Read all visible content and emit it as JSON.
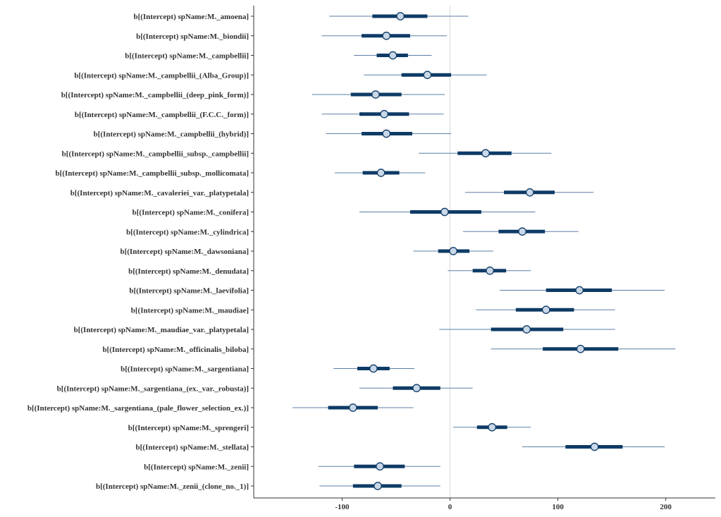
{
  "chart_data": {
    "type": "interval",
    "title": "",
    "xlabel": "",
    "ylabel": "",
    "xlim": [
      -182,
      246
    ],
    "xticks": [
      -100,
      0,
      100,
      200
    ],
    "xtick_labels": [
      "-100",
      "0",
      "100",
      "200"
    ],
    "reference_line": 0,
    "grid": false,
    "legend": "none",
    "colors": {
      "thin": "#5b7fa3",
      "thick": "#0e3b66",
      "point_fill": "#c9d8e8",
      "point_stroke": "#0e3b66",
      "axis": "#333333",
      "reference_line": "#d9d9d9"
    },
    "rows": [
      {
        "label": "b[(Intercept) spName:M._amoena]",
        "median": -46,
        "inner": [
          -72,
          -21
        ],
        "outer": [
          -112,
          17
        ]
      },
      {
        "label": "b[(Intercept) spName:M._biondii]",
        "median": -59,
        "inner": [
          -82,
          -37
        ],
        "outer": [
          -119,
          -3
        ]
      },
      {
        "label": "b[(Intercept) spName:M._campbellii]",
        "median": -53,
        "inner": [
          -68,
          -39
        ],
        "outer": [
          -89,
          -17
        ]
      },
      {
        "label": "b[(Intercept) spName:M._campbellii_(Alba_Group)]",
        "median": -21,
        "inner": [
          -45,
          1
        ],
        "outer": [
          -80,
          34
        ]
      },
      {
        "label": "b[(Intercept) spName:M._campbellii_(deep_pink_form)]",
        "median": -69,
        "inner": [
          -92,
          -45
        ],
        "outer": [
          -128,
          -5
        ]
      },
      {
        "label": "b[(Intercept) spName:M._campbellii_(F.C.C._form)]",
        "median": -61,
        "inner": [
          -84,
          -38
        ],
        "outer": [
          -119,
          -6
        ]
      },
      {
        "label": "b[(Intercept) spName:M._campbellii_(hybrid)]",
        "median": -59,
        "inner": [
          -82,
          -35
        ],
        "outer": [
          -115,
          1
        ]
      },
      {
        "label": "b[(Intercept) spName:M._campbellii_subsp._campbellii]",
        "median": 33,
        "inner": [
          7,
          57
        ],
        "outer": [
          -29,
          94
        ]
      },
      {
        "label": "b[(Intercept) spName:M._campbellii_subsp._mollicomata]",
        "median": -64,
        "inner": [
          -81,
          -47
        ],
        "outer": [
          -107,
          -23
        ]
      },
      {
        "label": "b[(Intercept) spName:M._cavaleriei_var._platypetala]",
        "median": 74,
        "inner": [
          50,
          97
        ],
        "outer": [
          14,
          133
        ]
      },
      {
        "label": "b[(Intercept) spName:M._conifera]",
        "median": -5,
        "inner": [
          -37,
          29
        ],
        "outer": [
          -84,
          79
        ]
      },
      {
        "label": "b[(Intercept) spName:M._cylindrica]",
        "median": 67,
        "inner": [
          45,
          88
        ],
        "outer": [
          12,
          119
        ]
      },
      {
        "label": "b[(Intercept) spName:M._dawsoniana]",
        "median": 3,
        "inner": [
          -11,
          18
        ],
        "outer": [
          -34,
          40
        ]
      },
      {
        "label": "b[(Intercept) spName:M._denudata]",
        "median": 37,
        "inner": [
          21,
          52
        ],
        "outer": [
          -2,
          75
        ]
      },
      {
        "label": "b[(Intercept) spName:M._laevifolia]",
        "median": 120,
        "inner": [
          89,
          150
        ],
        "outer": [
          46,
          199
        ]
      },
      {
        "label": "b[(Intercept) spName:M._maudiae]",
        "median": 89,
        "inner": [
          61,
          115
        ],
        "outer": [
          24,
          153
        ]
      },
      {
        "label": "b[(Intercept) spName:M._maudiae_var._platypetala]",
        "median": 71,
        "inner": [
          38,
          105
        ],
        "outer": [
          -10,
          153
        ]
      },
      {
        "label": "b[(Intercept) spName:M._officinalis_biloba]",
        "median": 121,
        "inner": [
          86,
          156
        ],
        "outer": [
          38,
          209
        ]
      },
      {
        "label": "b[(Intercept) spName:M._sargentiana]",
        "median": -71,
        "inner": [
          -86,
          -56
        ],
        "outer": [
          -108,
          -33
        ]
      },
      {
        "label": "b[(Intercept) spName:M._sargentiana_(ex._var._robusta)]",
        "median": -31,
        "inner": [
          -53,
          -9
        ],
        "outer": [
          -84,
          21
        ]
      },
      {
        "label": "b[(Intercept) spName:M._sargentiana_(pale_flower_selection_ex.)]",
        "median": -90,
        "inner": [
          -113,
          -67
        ],
        "outer": [
          -146,
          -34
        ]
      },
      {
        "label": "b[(Intercept) spName:M._sprengeri]",
        "median": 39,
        "inner": [
          25,
          53
        ],
        "outer": [
          3,
          75
        ]
      },
      {
        "label": "b[(Intercept) spName:M._stellata]",
        "median": 134,
        "inner": [
          107,
          160
        ],
        "outer": [
          67,
          199
        ]
      },
      {
        "label": "b[(Intercept) spName:M._zenii]",
        "median": -65,
        "inner": [
          -89,
          -42
        ],
        "outer": [
          -122,
          -9
        ]
      },
      {
        "label": "b[(Intercept) spName:M._zenii_(clone_no._1)]",
        "median": -67,
        "inner": [
          -90,
          -45
        ],
        "outer": [
          -121,
          -9
        ]
      }
    ]
  }
}
